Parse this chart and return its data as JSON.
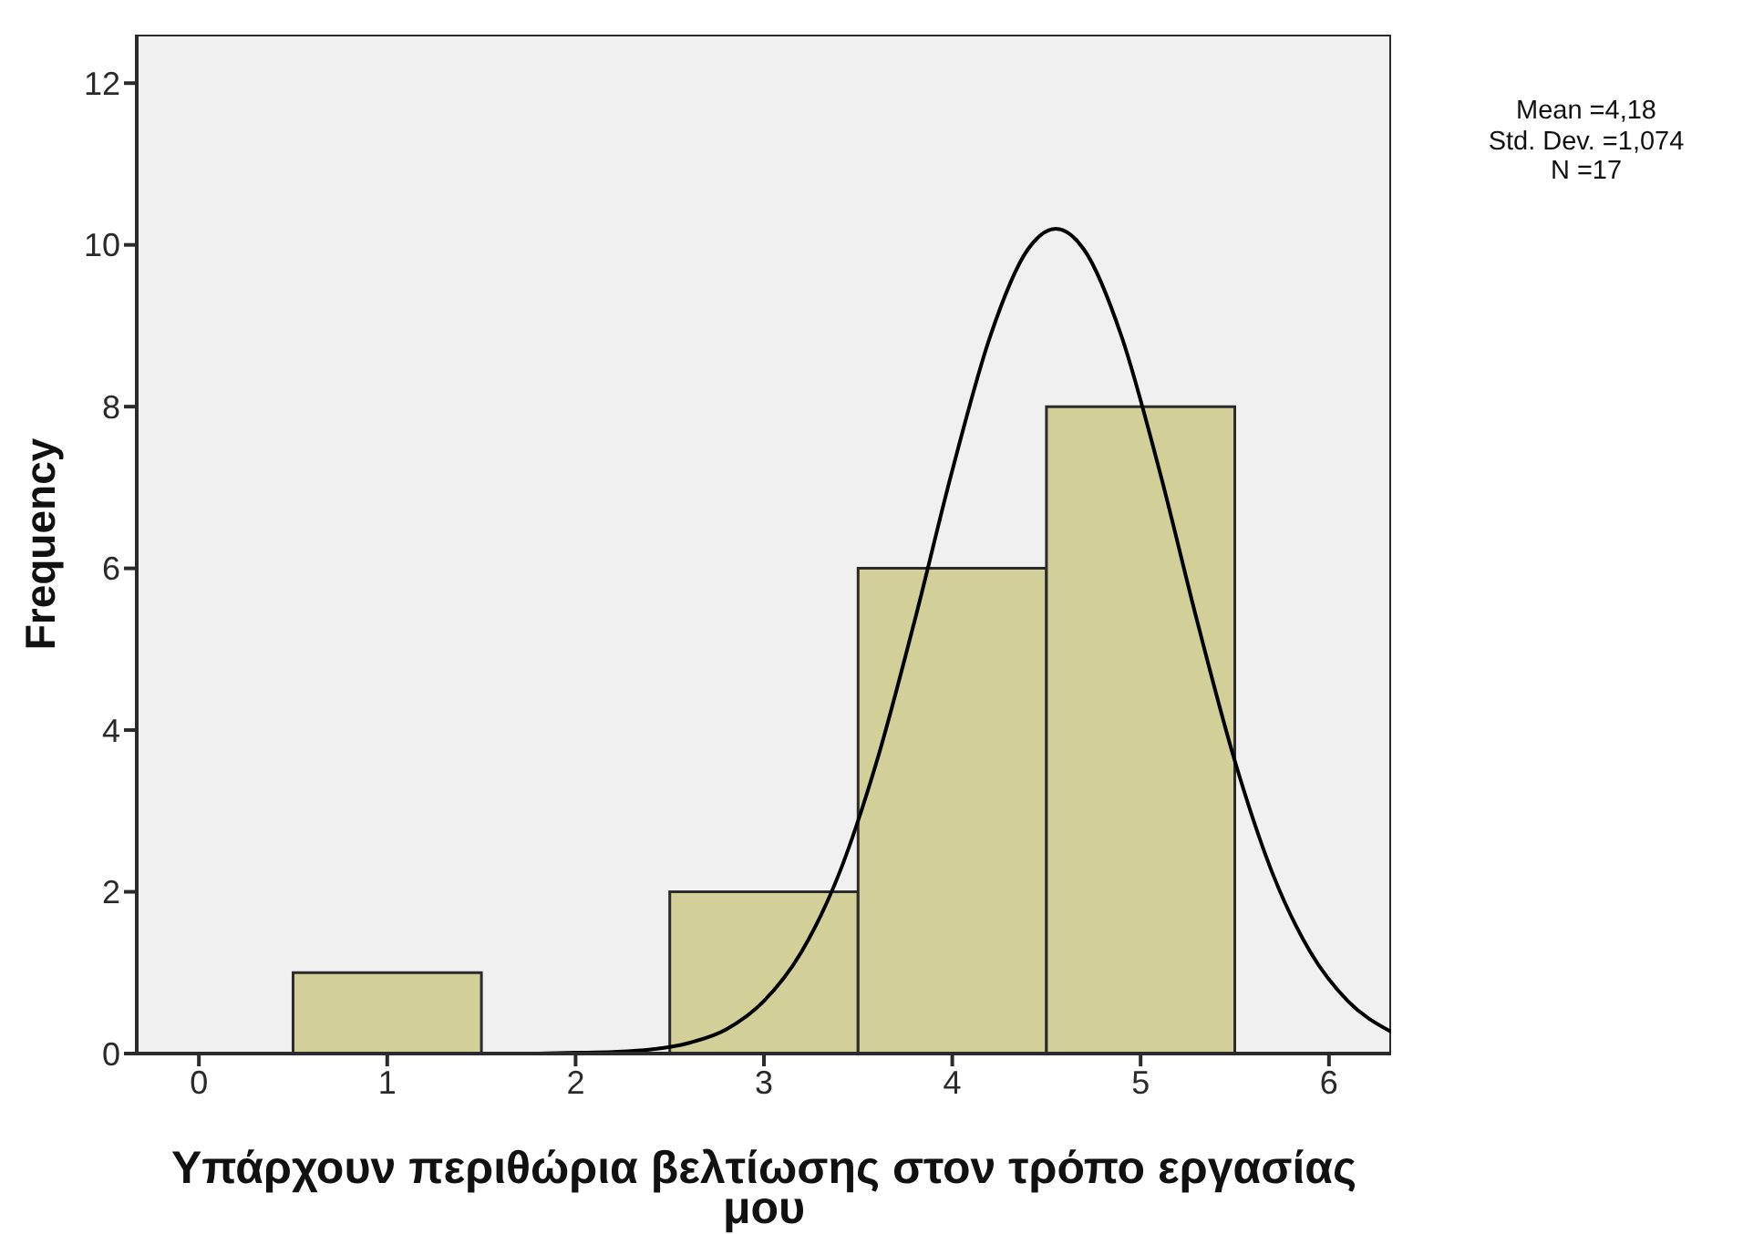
{
  "chart_data": {
    "type": "histogram",
    "xlabel": "Υπάρχουν περιθώρια βελτίωσης στον τρόπο εργασίας μου",
    "ylabel": "Frequency",
    "annotations": [
      "Mean =4,18",
      "Std. Dev. =1,074",
      "N =17"
    ],
    "series": [
      {
        "type": "histogram",
        "bins": [
          0.5,
          1.5,
          2.5,
          3.5,
          4.5,
          5.5
        ],
        "values": [
          1,
          0,
          2,
          6,
          8
        ],
        "color": "#d3cf98"
      },
      {
        "type": "line",
        "color": "#000000",
        "x": [
          1.8,
          2.0,
          2.2,
          2.4,
          2.6,
          2.8,
          3.0,
          3.2,
          3.4,
          3.6,
          3.8,
          4.0,
          4.2,
          4.4,
          4.55,
          4.7,
          4.9,
          5.1,
          5.3,
          5.5,
          5.7,
          5.9,
          6.1,
          6.33
        ],
        "values": [
          0,
          0.01,
          0.02,
          0.05,
          0.13,
          0.3,
          0.65,
          1.26,
          2.23,
          3.62,
          5.35,
          7.21,
          8.86,
          9.94,
          10.2,
          9.94,
          8.86,
          7.21,
          5.35,
          3.62,
          2.23,
          1.26,
          0.65,
          0.27
        ]
      }
    ],
    "xlim": [
      -0.33,
      6.33
    ],
    "xticks": [
      0,
      1,
      2,
      3,
      4,
      5,
      6
    ],
    "ylim": [
      0,
      12.6
    ],
    "yticks": [
      0,
      2,
      4,
      6,
      8,
      10,
      12
    ]
  }
}
